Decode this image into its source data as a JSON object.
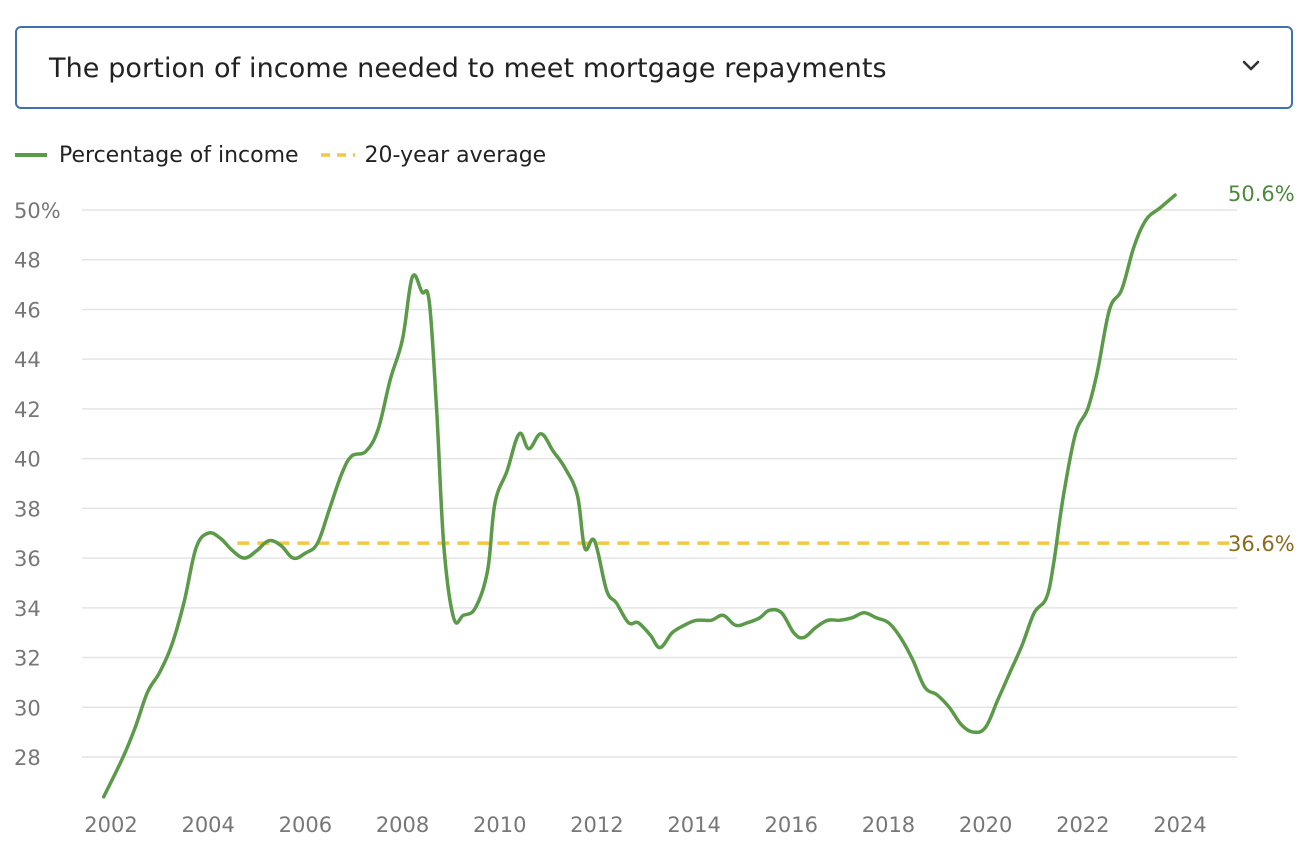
{
  "selector": {
    "label": "The portion of income needed to meet mortgage repayments",
    "icon": "chevron-down-icon"
  },
  "legend": [
    {
      "label": "Percentage of income",
      "color": "#5a9a48",
      "style": "solid"
    },
    {
      "label": "20-year average",
      "color": "#f2c744",
      "style": "dashed"
    }
  ],
  "chart_data": {
    "type": "line",
    "grid": true,
    "legend_position": "top-left",
    "ylim": [
      26,
      50.5
    ],
    "xlim": [
      2001.8,
      2025.5
    ],
    "y_ticks": [
      {
        "value": 28,
        "label": "28"
      },
      {
        "value": 30,
        "label": "30"
      },
      {
        "value": 32,
        "label": "32"
      },
      {
        "value": 34,
        "label": "34"
      },
      {
        "value": 36,
        "label": "36"
      },
      {
        "value": 38,
        "label": "38"
      },
      {
        "value": 40,
        "label": "40"
      },
      {
        "value": 42,
        "label": "42"
      },
      {
        "value": 44,
        "label": "44"
      },
      {
        "value": 46,
        "label": "46"
      },
      {
        "value": 48,
        "label": "48"
      },
      {
        "value": 50,
        "label": "50%"
      }
    ],
    "x_ticks": [
      {
        "value": 2002,
        "label": "2002"
      },
      {
        "value": 2004,
        "label": "2004"
      },
      {
        "value": 2006,
        "label": "2006"
      },
      {
        "value": 2008,
        "label": "2008"
      },
      {
        "value": 2010,
        "label": "2010"
      },
      {
        "value": 2012,
        "label": "2012"
      },
      {
        "value": 2014,
        "label": "2014"
      },
      {
        "value": 2016,
        "label": "2016"
      },
      {
        "value": 2018,
        "label": "2018"
      },
      {
        "value": 2020,
        "label": "2020"
      },
      {
        "value": 2022,
        "label": "2022"
      },
      {
        "value": 2024,
        "label": "2024"
      }
    ],
    "series": [
      {
        "name": "Percentage of income",
        "color": "#5a9a48",
        "end_label": "50.6%",
        "points": [
          [
            2001.85,
            26.4
          ],
          [
            2002.25,
            28.0
          ],
          [
            2002.5,
            29.2
          ],
          [
            2002.75,
            30.6
          ],
          [
            2003.0,
            31.4
          ],
          [
            2003.25,
            32.5
          ],
          [
            2003.5,
            34.2
          ],
          [
            2003.75,
            36.4
          ],
          [
            2004.0,
            37.0
          ],
          [
            2004.25,
            36.8
          ],
          [
            2004.5,
            36.3
          ],
          [
            2004.75,
            36.0
          ],
          [
            2005.0,
            36.3
          ],
          [
            2005.25,
            36.7
          ],
          [
            2005.5,
            36.5
          ],
          [
            2005.75,
            36.0
          ],
          [
            2006.0,
            36.2
          ],
          [
            2006.25,
            36.6
          ],
          [
            2006.5,
            38.0
          ],
          [
            2006.75,
            39.4
          ],
          [
            2006.95,
            40.1
          ],
          [
            2007.25,
            40.3
          ],
          [
            2007.5,
            41.2
          ],
          [
            2007.75,
            43.2
          ],
          [
            2008.0,
            44.8
          ],
          [
            2008.2,
            47.3
          ],
          [
            2008.4,
            46.7
          ],
          [
            2008.55,
            46.3
          ],
          [
            2008.7,
            42.0
          ],
          [
            2008.85,
            36.5
          ],
          [
            2009.05,
            33.6
          ],
          [
            2009.25,
            33.7
          ],
          [
            2009.5,
            34.0
          ],
          [
            2009.75,
            35.5
          ],
          [
            2009.9,
            38.2
          ],
          [
            2010.15,
            39.5
          ],
          [
            2010.4,
            41.0
          ],
          [
            2010.6,
            40.4
          ],
          [
            2010.85,
            41.0
          ],
          [
            2011.1,
            40.3
          ],
          [
            2011.35,
            39.6
          ],
          [
            2011.6,
            38.5
          ],
          [
            2011.75,
            36.4
          ],
          [
            2011.95,
            36.7
          ],
          [
            2012.2,
            34.7
          ],
          [
            2012.4,
            34.2
          ],
          [
            2012.65,
            33.4
          ],
          [
            2012.85,
            33.4
          ],
          [
            2013.1,
            32.9
          ],
          [
            2013.3,
            32.4
          ],
          [
            2013.55,
            33.0
          ],
          [
            2013.8,
            33.3
          ],
          [
            2014.05,
            33.5
          ],
          [
            2014.35,
            33.5
          ],
          [
            2014.6,
            33.7
          ],
          [
            2014.85,
            33.3
          ],
          [
            2015.1,
            33.4
          ],
          [
            2015.35,
            33.6
          ],
          [
            2015.55,
            33.9
          ],
          [
            2015.8,
            33.8
          ],
          [
            2016.05,
            33.0
          ],
          [
            2016.25,
            32.8
          ],
          [
            2016.5,
            33.2
          ],
          [
            2016.75,
            33.5
          ],
          [
            2017.0,
            33.5
          ],
          [
            2017.25,
            33.6
          ],
          [
            2017.5,
            33.8
          ],
          [
            2017.75,
            33.6
          ],
          [
            2018.0,
            33.4
          ],
          [
            2018.25,
            32.8
          ],
          [
            2018.5,
            31.9
          ],
          [
            2018.75,
            30.8
          ],
          [
            2019.0,
            30.5
          ],
          [
            2019.25,
            30.0
          ],
          [
            2019.5,
            29.3
          ],
          [
            2019.75,
            29.0
          ],
          [
            2020.0,
            29.2
          ],
          [
            2020.25,
            30.3
          ],
          [
            2020.5,
            31.4
          ],
          [
            2020.75,
            32.5
          ],
          [
            2021.0,
            33.8
          ],
          [
            2021.25,
            34.4
          ],
          [
            2021.4,
            35.8
          ],
          [
            2021.6,
            38.5
          ],
          [
            2021.85,
            41.0
          ],
          [
            2022.1,
            42.0
          ],
          [
            2022.3,
            43.5
          ],
          [
            2022.55,
            46.0
          ],
          [
            2022.8,
            46.8
          ],
          [
            2023.05,
            48.5
          ],
          [
            2023.3,
            49.6
          ],
          [
            2023.6,
            50.1
          ],
          [
            2023.9,
            50.6
          ]
        ]
      },
      {
        "name": "20-year average",
        "color": "#f2c744",
        "style": "dashed",
        "end_label": "36.6%",
        "x_range": [
          2004.6,
          2025.5
        ],
        "value": 36.6
      }
    ]
  },
  "colors": {
    "end_label_series": "#4a8a3a",
    "end_label_average": "#8a6a1a",
    "grid": "#e4e4e4",
    "tick_text": "#777777"
  }
}
